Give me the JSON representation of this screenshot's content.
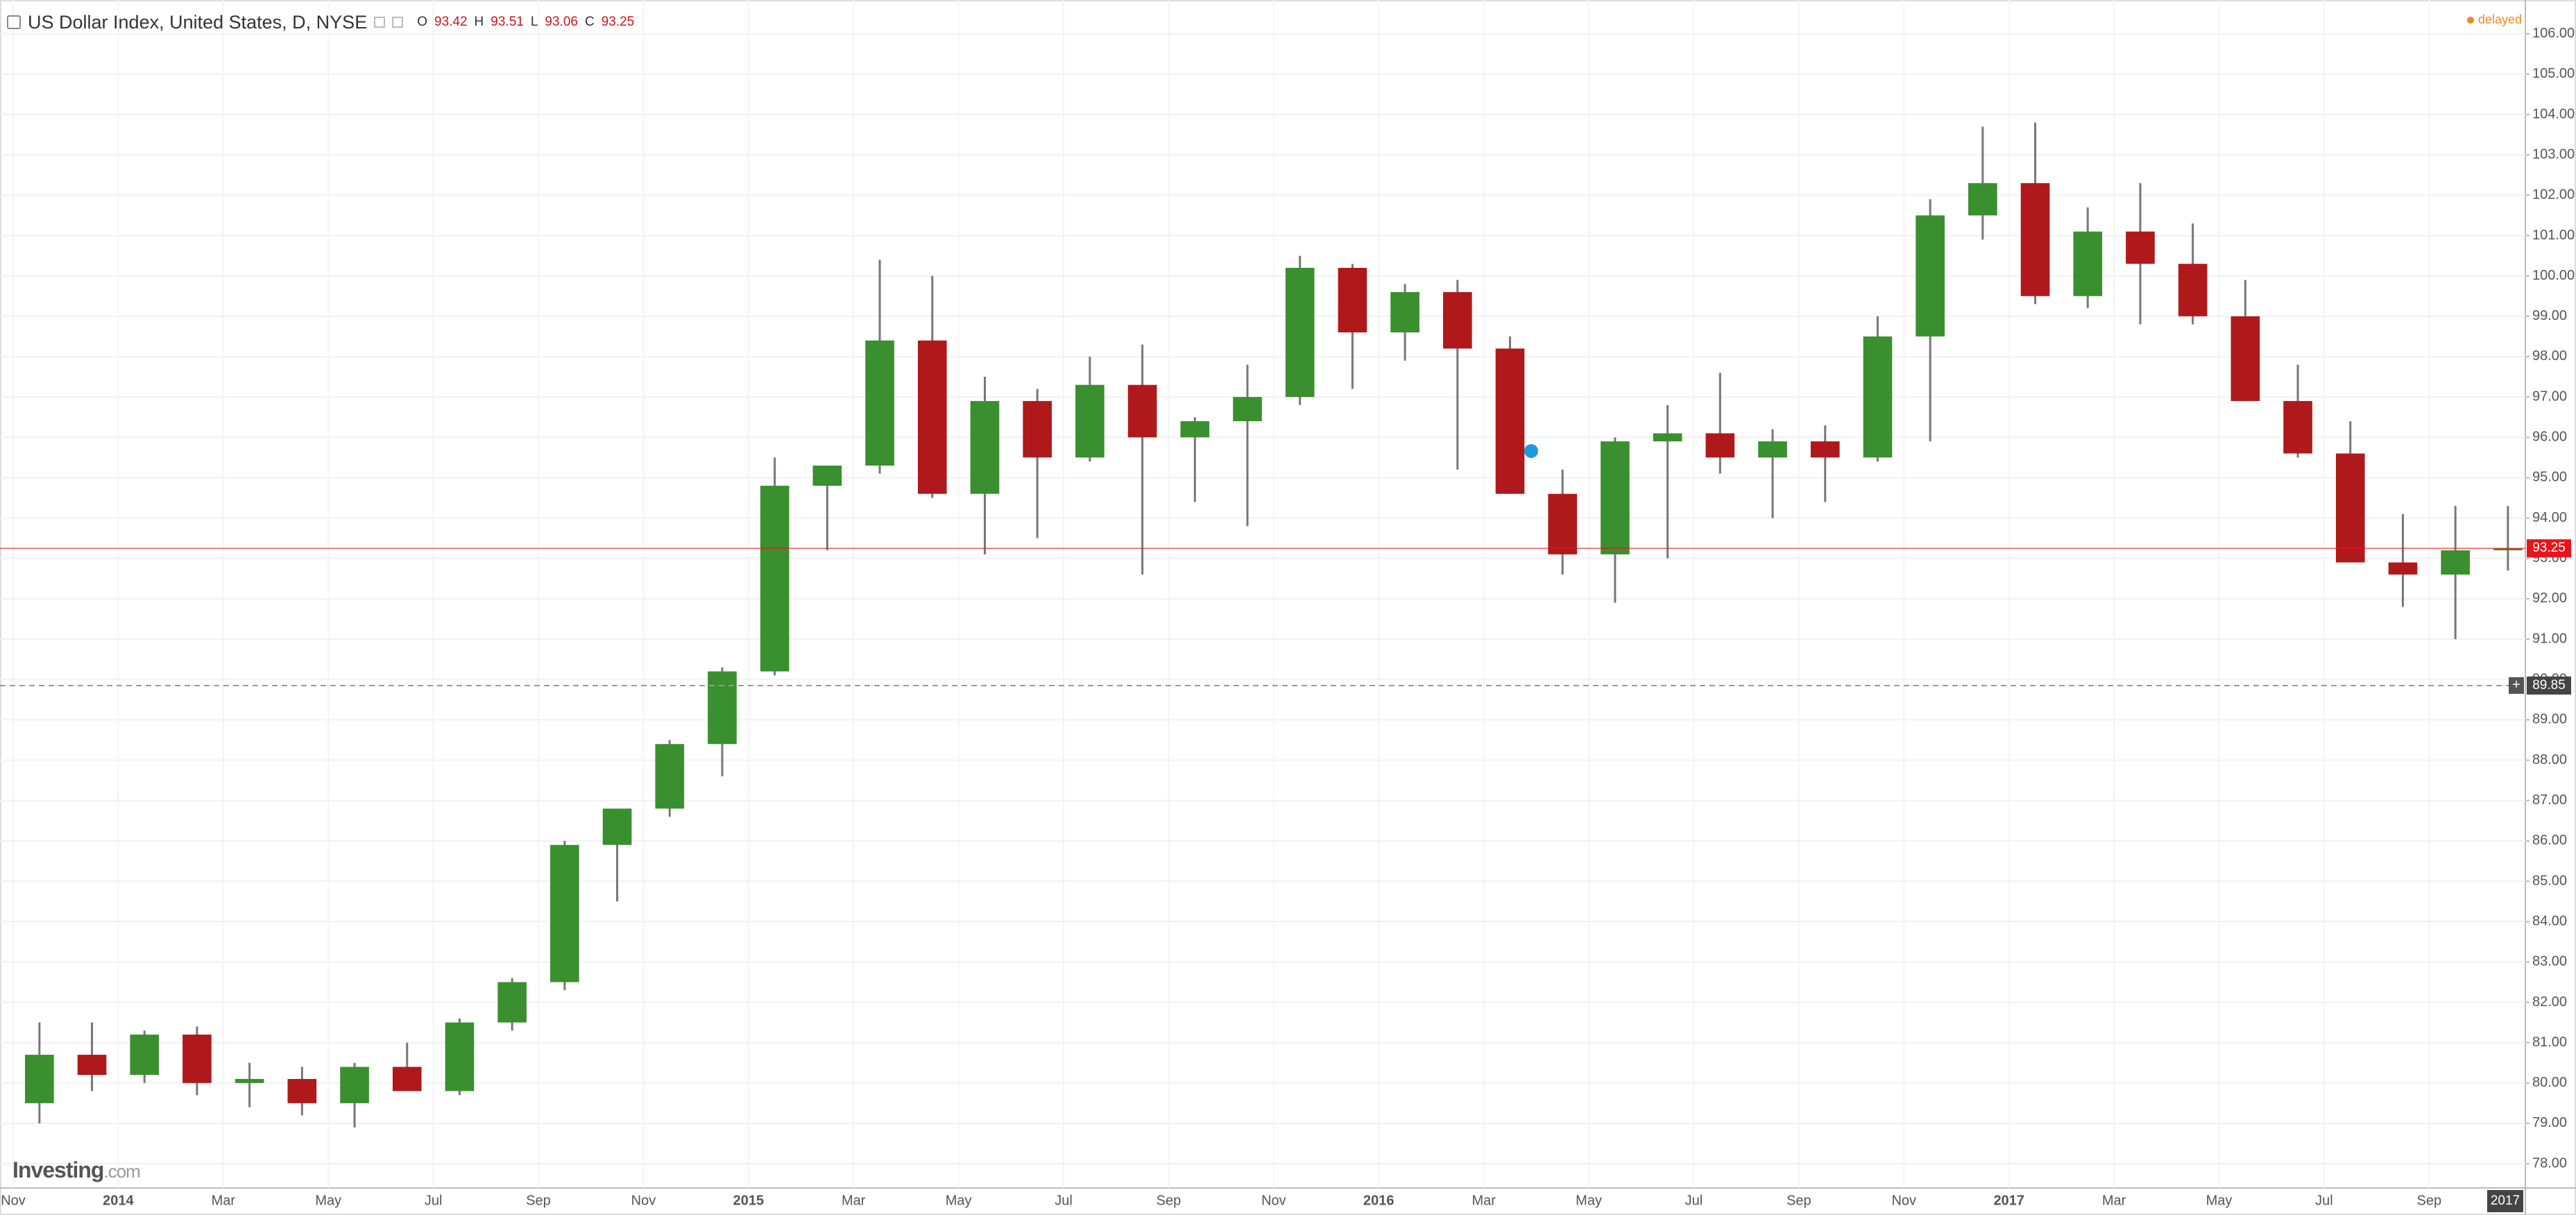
{
  "chart_data": {
    "type": "candlestick",
    "title": "US Dollar Index, United States, D, NYSE",
    "header_ohlc": [
      {
        "label": "O",
        "value": 93.42
      },
      {
        "label": "H",
        "value": 93.51
      },
      {
        "label": "L",
        "value": 93.06
      },
      {
        "label": "C",
        "value": 93.25
      }
    ],
    "status": "delayed",
    "logo": "Investing",
    "logo_suffix": ".com",
    "categories": [
      "Nov",
      null,
      "2014",
      null,
      "Mar",
      null,
      "May",
      null,
      "Jul",
      null,
      "Sep",
      null,
      "Nov",
      null,
      "2015",
      null,
      "Mar",
      null,
      "May",
      null,
      "Jul",
      null,
      "Sep",
      null,
      "Nov",
      null,
      "2016",
      null,
      "Mar",
      null,
      "May",
      null,
      "Jul",
      null,
      "Sep",
      null,
      "Nov",
      null,
      "2017",
      null,
      "Mar",
      null,
      "May",
      null,
      "Jul",
      null,
      "Sep",
      null
    ],
    "open": [
      79.5,
      80.7,
      80.2,
      81.2,
      80.0,
      80.1,
      79.5,
      80.4,
      79.8,
      81.5,
      82.5,
      85.9,
      86.8,
      88.4,
      90.2,
      94.8,
      95.3,
      98.4,
      94.6,
      96.9,
      95.5,
      97.3,
      96.0,
      96.4,
      97.0,
      100.2,
      98.6,
      99.6,
      98.2,
      94.6,
      93.1,
      95.9,
      96.1,
      95.5,
      95.9,
      95.5,
      98.5,
      101.5,
      102.3,
      99.5,
      101.1,
      100.3,
      99.0,
      96.9,
      95.6,
      92.9,
      92.6,
      93.2
    ],
    "high": [
      81.5,
      81.5,
      81.3,
      81.4,
      80.5,
      80.4,
      80.5,
      81.0,
      81.6,
      82.6,
      86.0,
      86.8,
      88.5,
      90.3,
      95.5,
      95.3,
      100.4,
      100.0,
      97.5,
      97.2,
      98.0,
      98.3,
      96.5,
      97.8,
      100.5,
      100.3,
      99.8,
      99.9,
      98.5,
      95.2,
      96.0,
      96.8,
      97.6,
      96.2,
      96.3,
      99.0,
      101.9,
      103.7,
      103.8,
      101.7,
      102.3,
      101.3,
      99.9,
      97.8,
      96.4,
      94.1,
      94.3,
      94.3
    ],
    "low": [
      79.0,
      79.8,
      80.0,
      79.7,
      79.4,
      79.2,
      78.9,
      80.0,
      79.7,
      81.3,
      82.3,
      84.5,
      86.6,
      87.6,
      90.1,
      93.2,
      95.1,
      94.5,
      93.1,
      93.5,
      95.4,
      92.6,
      94.4,
      93.8,
      96.8,
      97.2,
      97.9,
      95.2,
      94.6,
      92.6,
      91.9,
      93.0,
      95.1,
      94.0,
      94.4,
      95.4,
      95.9,
      100.9,
      99.3,
      99.2,
      98.8,
      98.8,
      96.9,
      95.5,
      92.9,
      91.8,
      91.0,
      92.7
    ],
    "close": [
      80.7,
      80.2,
      81.2,
      80.0,
      80.1,
      79.5,
      80.4,
      79.8,
      81.5,
      82.5,
      85.9,
      86.8,
      88.4,
      90.2,
      94.8,
      95.3,
      98.4,
      94.6,
      96.9,
      95.5,
      97.3,
      96.0,
      96.4,
      97.0,
      100.2,
      98.6,
      99.6,
      98.2,
      94.6,
      93.1,
      95.9,
      96.1,
      95.5,
      95.9,
      95.5,
      98.5,
      101.5,
      102.3,
      99.5,
      101.1,
      100.3,
      99.0,
      96.9,
      95.6,
      92.9,
      92.6,
      93.2,
      93.25
    ],
    "up_color": "#3a8f2e",
    "down_color": "#b0191c",
    "ylim": [
      77.4,
      106.7
    ],
    "yticks": [
      {
        "value": 78,
        "label": "78.00"
      },
      {
        "value": 79,
        "label": "79.00"
      },
      {
        "value": 80,
        "label": "80.00"
      },
      {
        "value": 81,
        "label": "81.00"
      },
      {
        "value": 82,
        "label": "82.00"
      },
      {
        "value": 83,
        "label": "83.00"
      },
      {
        "value": 84,
        "label": "84.00"
      },
      {
        "value": 85,
        "label": "85.00"
      },
      {
        "value": 86,
        "label": "86.00"
      },
      {
        "value": 87,
        "label": "87.00"
      },
      {
        "value": 88,
        "label": "88.00"
      },
      {
        "value": 89,
        "label": "89.00"
      },
      {
        "value": 90,
        "label": "90.00"
      },
      {
        "value": 91,
        "label": "91.00"
      },
      {
        "value": 92,
        "label": "92.00"
      },
      {
        "value": 93,
        "label": "93.00"
      },
      {
        "value": 94,
        "label": "94.00"
      },
      {
        "value": 95,
        "label": "95.00"
      },
      {
        "value": 96,
        "label": "96.00"
      },
      {
        "value": 97,
        "label": "97.00"
      },
      {
        "value": 98,
        "label": "98.00"
      },
      {
        "value": 99,
        "label": "99.00"
      },
      {
        "value": 100,
        "label": "100.00"
      },
      {
        "value": 101,
        "label": "101.00"
      },
      {
        "value": 102,
        "label": "102.00"
      },
      {
        "value": 103,
        "label": "103.00"
      },
      {
        "value": 104,
        "label": "104.00"
      },
      {
        "value": 105,
        "label": "105.00"
      },
      {
        "value": 106,
        "label": "106.00"
      }
    ],
    "grid": true,
    "last_price": 93.25,
    "last_price_color": "#e8141a",
    "crosshair_price": 89.85,
    "crosshair_x_label": "2017"
  }
}
